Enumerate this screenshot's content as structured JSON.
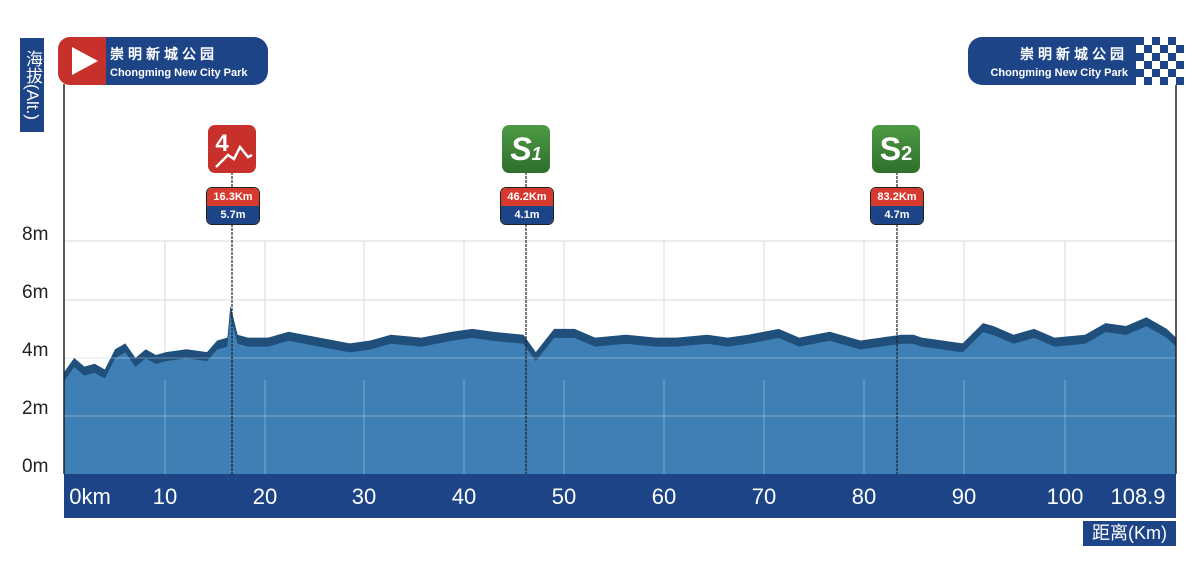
{
  "chart_data": {
    "type": "area",
    "title": "",
    "xlabel": "距离(Km)",
    "ylabel": "海拔(Alt.)",
    "xlim": [
      0,
      108.9
    ],
    "ylim": [
      0,
      8
    ],
    "x_ticks": [
      "0km",
      "10",
      "20",
      "30",
      "40",
      "50",
      "60",
      "70",
      "80",
      "90",
      "100",
      "108.9"
    ],
    "y_ticks": [
      "0m",
      "2m",
      "4m",
      "6m",
      "8m"
    ],
    "grid": true,
    "series": [
      {
        "name": "elevation",
        "x": [
          0,
          1,
          2,
          3,
          4,
          5,
          6,
          7,
          8,
          9,
          10,
          12,
          14,
          15,
          16,
          16.3,
          17,
          18,
          20,
          22,
          25,
          28,
          30,
          32,
          35,
          38,
          40,
          42,
          45,
          46.2,
          48,
          50,
          52,
          55,
          58,
          60,
          63,
          65,
          67,
          70,
          72,
          75,
          78,
          80,
          82,
          83.2,
          84,
          86,
          88,
          90,
          91,
          93,
          95,
          97,
          100,
          102,
          104,
          106,
          108,
          108.9
        ],
        "values": [
          3.4,
          3.9,
          3.6,
          3.7,
          3.5,
          4.2,
          4.4,
          3.9,
          4.2,
          4.0,
          4.1,
          4.2,
          4.1,
          4.5,
          4.6,
          5.7,
          4.7,
          4.6,
          4.6,
          4.8,
          4.6,
          4.4,
          4.5,
          4.7,
          4.6,
          4.8,
          4.9,
          4.8,
          4.7,
          4.1,
          4.9,
          4.9,
          4.6,
          4.7,
          4.6,
          4.6,
          4.7,
          4.6,
          4.7,
          4.9,
          4.6,
          4.8,
          4.5,
          4.6,
          4.7,
          4.7,
          4.6,
          4.5,
          4.4,
          5.1,
          5.0,
          4.7,
          4.9,
          4.6,
          4.7,
          5.1,
          5.0,
          5.3,
          4.9,
          4.6
        ]
      }
    ],
    "annotations": [
      {
        "type": "climb",
        "label": "4",
        "km": "16.3Km",
        "alt": "5.7m",
        "x": 16.3
      },
      {
        "type": "sprint",
        "label": "S1",
        "km": "46.2Km",
        "alt": "4.1m",
        "x": 46.2
      },
      {
        "type": "sprint",
        "label": "S2",
        "km": "83.2Km",
        "alt": "4.7m",
        "x": 83.2
      }
    ]
  },
  "axis": {
    "y_label": "海拔(Alt.)",
    "x_unit": "距离(Km)",
    "y_ticks": [
      "8m",
      "6m",
      "4m",
      "2m",
      "0m"
    ],
    "x_ticks": [
      "0km",
      "10",
      "20",
      "30",
      "40",
      "50",
      "60",
      "70",
      "80",
      "90",
      "100",
      "108.9"
    ]
  },
  "start": {
    "name_cn": "崇明新城公园",
    "name_en": "Chongming New City Park",
    "icon": "play-icon"
  },
  "finish": {
    "name_cn": "崇明新城公园",
    "name_en": "Chongming New City Park",
    "icon": "checkered-flag-icon"
  },
  "markers": [
    {
      "label": "4",
      "km": "16.3Km",
      "alt": "5.7m",
      "color": "#c8312b"
    },
    {
      "label": "S",
      "sub": "1",
      "km": "46.2Km",
      "alt": "4.1m",
      "color": "#3f8a3a"
    },
    {
      "label": "S",
      "sub": "2",
      "km": "83.2Km",
      "alt": "4.7m",
      "color": "#3f8a3a"
    }
  ],
  "colors": {
    "navy": "#1d4486",
    "area": "#3e7fb5",
    "ridge": "#1f4f7a",
    "red": "#c8312b",
    "green": "#3f8a3a"
  }
}
